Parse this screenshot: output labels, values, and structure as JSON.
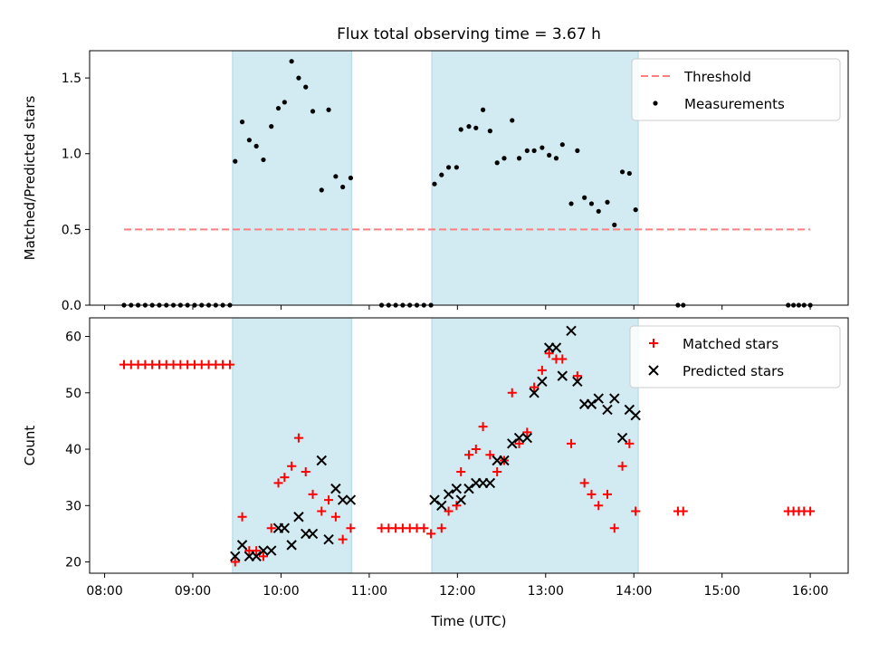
{
  "chart_data": {
    "title": "Flux total observing time = 3.67 h",
    "xlabel": "Time (UTC)",
    "x_unit": "hours UTC",
    "x_ticks": [
      {
        "value": 8,
        "label": "08:00"
      },
      {
        "value": 9,
        "label": "09:00"
      },
      {
        "value": 10,
        "label": "10:00"
      },
      {
        "value": 11,
        "label": "11:00"
      },
      {
        "value": 12,
        "label": "12:00"
      },
      {
        "value": 13,
        "label": "13:00"
      },
      {
        "value": 14,
        "label": "14:00"
      },
      {
        "value": 15,
        "label": "15:00"
      },
      {
        "value": 16,
        "label": "16:00"
      }
    ],
    "xlim": [
      7.83,
      16.43
    ],
    "observing_windows": [
      [
        9.45,
        10.8
      ],
      [
        11.71,
        14.05
      ]
    ],
    "window_color": "#add8e6",
    "panels": [
      {
        "type": "scatter",
        "ylabel": "Matched/Predicted stars",
        "ylim": [
          0,
          1.68
        ],
        "yticks": [
          "0.0",
          "0.5",
          "1.0",
          "1.5"
        ],
        "ytick_values": [
          0,
          0.5,
          1.0,
          1.5
        ],
        "legend_position": "top-right",
        "threshold": {
          "name": "Threshold",
          "value": 0.5,
          "x_range": [
            8.22,
            16.0
          ],
          "color": "#ff7f7f",
          "style": "dashed"
        },
        "series": [
          {
            "name": "Measurements",
            "color": "#000000",
            "marker": "dot",
            "points": [
              [
                8.22,
                0
              ],
              [
                8.3,
                0
              ],
              [
                8.38,
                0
              ],
              [
                8.46,
                0
              ],
              [
                8.54,
                0
              ],
              [
                8.62,
                0
              ],
              [
                8.7,
                0
              ],
              [
                8.78,
                0
              ],
              [
                8.86,
                0
              ],
              [
                8.94,
                0
              ],
              [
                9.02,
                0
              ],
              [
                9.1,
                0
              ],
              [
                9.18,
                0
              ],
              [
                9.26,
                0
              ],
              [
                9.34,
                0
              ],
              [
                9.42,
                0
              ],
              [
                9.48,
                0.95
              ],
              [
                9.56,
                1.21
              ],
              [
                9.64,
                1.09
              ],
              [
                9.72,
                1.05
              ],
              [
                9.8,
                0.96
              ],
              [
                9.89,
                1.18
              ],
              [
                9.97,
                1.3
              ],
              [
                10.04,
                1.34
              ],
              [
                10.12,
                1.61
              ],
              [
                10.2,
                1.5
              ],
              [
                10.28,
                1.44
              ],
              [
                10.36,
                1.28
              ],
              [
                10.46,
                0.76
              ],
              [
                10.54,
                1.29
              ],
              [
                10.62,
                0.85
              ],
              [
                10.7,
                0.78
              ],
              [
                10.79,
                0.84
              ],
              [
                11.14,
                0
              ],
              [
                11.22,
                0
              ],
              [
                11.3,
                0
              ],
              [
                11.38,
                0
              ],
              [
                11.46,
                0
              ],
              [
                11.54,
                0
              ],
              [
                11.62,
                0
              ],
              [
                11.7,
                0
              ],
              [
                11.74,
                0.8
              ],
              [
                11.82,
                0.86
              ],
              [
                11.9,
                0.91
              ],
              [
                11.99,
                0.91
              ],
              [
                12.04,
                1.16
              ],
              [
                12.13,
                1.18
              ],
              [
                12.21,
                1.17
              ],
              [
                12.29,
                1.29
              ],
              [
                12.37,
                1.15
              ],
              [
                12.45,
                0.94
              ],
              [
                12.53,
                0.97
              ],
              [
                12.62,
                1.22
              ],
              [
                12.7,
                0.97
              ],
              [
                12.79,
                1.02
              ],
              [
                12.87,
                1.02
              ],
              [
                12.96,
                1.04
              ],
              [
                13.04,
                0.99
              ],
              [
                13.12,
                0.97
              ],
              [
                13.19,
                1.06
              ],
              [
                13.29,
                0.67
              ],
              [
                13.36,
                1.02
              ],
              [
                13.44,
                0.71
              ],
              [
                13.52,
                0.67
              ],
              [
                13.6,
                0.62
              ],
              [
                13.7,
                0.68
              ],
              [
                13.78,
                0.53
              ],
              [
                13.87,
                0.88
              ],
              [
                13.95,
                0.87
              ],
              [
                14.02,
                0.63
              ],
              [
                14.5,
                0
              ],
              [
                14.56,
                0
              ],
              [
                15.75,
                0
              ],
              [
                15.81,
                0
              ],
              [
                15.87,
                0
              ],
              [
                15.93,
                0
              ],
              [
                16.0,
                0
              ]
            ]
          }
        ]
      },
      {
        "type": "scatter",
        "ylabel": "Count",
        "ylim": [
          18,
          63.3
        ],
        "yticks": [
          "20",
          "30",
          "40",
          "50",
          "60"
        ],
        "ytick_values": [
          20,
          30,
          40,
          50,
          60
        ],
        "legend_position": "top-right",
        "series": [
          {
            "name": "Matched stars",
            "color": "#ff0000",
            "marker": "plus",
            "points": [
              [
                8.22,
                55
              ],
              [
                8.3,
                55
              ],
              [
                8.38,
                55
              ],
              [
                8.46,
                55
              ],
              [
                8.54,
                55
              ],
              [
                8.62,
                55
              ],
              [
                8.7,
                55
              ],
              [
                8.78,
                55
              ],
              [
                8.86,
                55
              ],
              [
                8.94,
                55
              ],
              [
                9.02,
                55
              ],
              [
                9.1,
                55
              ],
              [
                9.18,
                55
              ],
              [
                9.26,
                55
              ],
              [
                9.34,
                55
              ],
              [
                9.42,
                55
              ],
              [
                9.48,
                20
              ],
              [
                9.56,
                28
              ],
              [
                9.64,
                22
              ],
              [
                9.72,
                22
              ],
              [
                9.8,
                21
              ],
              [
                9.89,
                26
              ],
              [
                9.97,
                34
              ],
              [
                10.04,
                35
              ],
              [
                10.12,
                37
              ],
              [
                10.2,
                42
              ],
              [
                10.28,
                36
              ],
              [
                10.36,
                32
              ],
              [
                10.46,
                29
              ],
              [
                10.54,
                31
              ],
              [
                10.62,
                28
              ],
              [
                10.7,
                24
              ],
              [
                10.79,
                26
              ],
              [
                11.14,
                26
              ],
              [
                11.22,
                26
              ],
              [
                11.3,
                26
              ],
              [
                11.38,
                26
              ],
              [
                11.46,
                26
              ],
              [
                11.54,
                26
              ],
              [
                11.62,
                26
              ],
              [
                11.7,
                25
              ],
              [
                11.82,
                26
              ],
              [
                11.9,
                29
              ],
              [
                11.99,
                30
              ],
              [
                12.04,
                36
              ],
              [
                12.13,
                39
              ],
              [
                12.21,
                40
              ],
              [
                12.29,
                44
              ],
              [
                12.37,
                39
              ],
              [
                12.45,
                36
              ],
              [
                12.53,
                38
              ],
              [
                12.62,
                50
              ],
              [
                12.7,
                41
              ],
              [
                12.79,
                43
              ],
              [
                12.87,
                51
              ],
              [
                12.96,
                54
              ],
              [
                13.04,
                57
              ],
              [
                13.12,
                56
              ],
              [
                13.19,
                56
              ],
              [
                13.29,
                41
              ],
              [
                13.36,
                53
              ],
              [
                13.44,
                34
              ],
              [
                13.52,
                32
              ],
              [
                13.6,
                30
              ],
              [
                13.7,
                32
              ],
              [
                13.78,
                26
              ],
              [
                13.87,
                37
              ],
              [
                13.95,
                41
              ],
              [
                14.02,
                29
              ],
              [
                14.5,
                29
              ],
              [
                14.56,
                29
              ],
              [
                15.75,
                29
              ],
              [
                15.81,
                29
              ],
              [
                15.87,
                29
              ],
              [
                15.93,
                29
              ],
              [
                16.0,
                29
              ]
            ]
          },
          {
            "name": "Predicted stars",
            "color": "#000000",
            "marker": "x",
            "points": [
              [
                9.48,
                21
              ],
              [
                9.56,
                23
              ],
              [
                9.64,
                21
              ],
              [
                9.72,
                21
              ],
              [
                9.8,
                22
              ],
              [
                9.89,
                22
              ],
              [
                9.97,
                26
              ],
              [
                10.04,
                26
              ],
              [
                10.12,
                23
              ],
              [
                10.2,
                28
              ],
              [
                10.28,
                25
              ],
              [
                10.36,
                25
              ],
              [
                10.46,
                38
              ],
              [
                10.54,
                24
              ],
              [
                10.62,
                33
              ],
              [
                10.7,
                31
              ],
              [
                10.79,
                31
              ],
              [
                11.74,
                31
              ],
              [
                11.82,
                30
              ],
              [
                11.9,
                32
              ],
              [
                11.99,
                33
              ],
              [
                12.04,
                31
              ],
              [
                12.13,
                33
              ],
              [
                12.21,
                34
              ],
              [
                12.29,
                34
              ],
              [
                12.37,
                34
              ],
              [
                12.45,
                38
              ],
              [
                12.53,
                38
              ],
              [
                12.62,
                41
              ],
              [
                12.7,
                42
              ],
              [
                12.79,
                42
              ],
              [
                12.87,
                50
              ],
              [
                12.96,
                52
              ],
              [
                13.04,
                58
              ],
              [
                13.12,
                58
              ],
              [
                13.19,
                53
              ],
              [
                13.29,
                61
              ],
              [
                13.36,
                52
              ],
              [
                13.44,
                48
              ],
              [
                13.52,
                48
              ],
              [
                13.6,
                49
              ],
              [
                13.7,
                47
              ],
              [
                13.78,
                49
              ],
              [
                13.87,
                42
              ],
              [
                13.95,
                47
              ],
              [
                14.02,
                46
              ]
            ]
          }
        ]
      }
    ]
  }
}
